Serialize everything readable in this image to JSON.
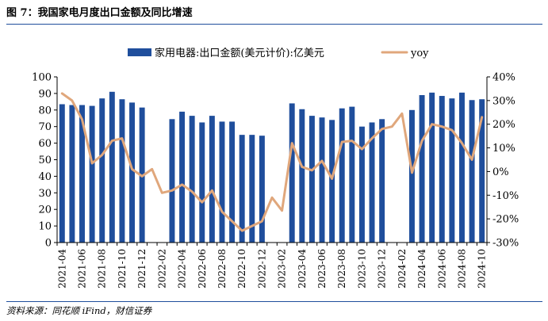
{
  "figure": {
    "title": "图 7：我国家电月度出口金额及同比增速",
    "source": "资料来源：同花顺 iFind，财信证券"
  },
  "colors": {
    "bar": "#1f4e9c",
    "line": "#e0a77c",
    "rule": "#1f4e9c",
    "axis": "#000000"
  },
  "chart_data": {
    "type": "bar",
    "categories": [
      "2021-04",
      "2021-05",
      "2021-06",
      "2021-07",
      "2021-08",
      "2021-09",
      "2021-10",
      "2021-11",
      "2021-12",
      "2022-01",
      "2022-02",
      "2022-03",
      "2022-04",
      "2022-05",
      "2022-06",
      "2022-07",
      "2022-08",
      "2022-09",
      "2022-10",
      "2022-11",
      "2022-12",
      "2023-01",
      "2023-02",
      "2023-03",
      "2023-04",
      "2023-05",
      "2023-06",
      "2023-07",
      "2023-08",
      "2023-09",
      "2023-10",
      "2023-11",
      "2023-12",
      "2024-01",
      "2024-02",
      "2024-03",
      "2024-04",
      "2024-05",
      "2024-06",
      "2024-07",
      "2024-08",
      "2024-09",
      "2024-10"
    ],
    "x_tick_labels": [
      "2021-04",
      "2021-06",
      "2021-08",
      "2021-10",
      "2021-12",
      "2022-02",
      "2022-04",
      "2022-06",
      "2022-08",
      "2022-10",
      "2022-12",
      "2023-02",
      "2023-04",
      "2023-06",
      "2023-08",
      "2023-10",
      "2023-12",
      "2024-02",
      "2024-04",
      "2024-06",
      "2024-08",
      "2024-10"
    ],
    "series": [
      {
        "name": "家用电器:出口金额(美元计价):亿美元",
        "type": "bar",
        "axis": "left",
        "values": [
          83.5,
          83,
          83,
          82.5,
          87,
          91,
          86.5,
          84.5,
          81.5,
          null,
          null,
          74.5,
          79,
          76.5,
          72.5,
          76.5,
          73,
          73,
          65,
          65,
          64.5,
          null,
          null,
          84,
          80.5,
          76.5,
          75.5,
          74,
          81,
          82,
          70,
          72.5,
          74.5,
          null,
          null,
          80,
          89,
          90.5,
          88.5,
          87,
          90.5,
          86,
          86.5
        ]
      },
      {
        "name": "yoy",
        "type": "line",
        "axis": "right",
        "values": [
          33,
          30,
          22,
          3.5,
          7,
          13,
          14,
          1,
          -2,
          1,
          -9,
          -8,
          -5.5,
          -8.5,
          -13,
          -8,
          -17,
          -21,
          -25,
          -23,
          -21,
          -11,
          -16.5,
          12,
          2,
          0.5,
          4.5,
          -3,
          12.5,
          13,
          9.5,
          14,
          18,
          19,
          24.5,
          -0.5,
          13,
          20,
          19,
          17.5,
          12,
          5,
          23
        ]
      }
    ],
    "y_left": {
      "min": 0,
      "max": 100,
      "ticks": [
        "0",
        "10",
        "20",
        "30",
        "40",
        "50",
        "60",
        "70",
        "80",
        "90",
        "100"
      ]
    },
    "y_right": {
      "min": -30,
      "max": 40,
      "ticks": [
        "-30%",
        "-20%",
        "-10%",
        "0%",
        "10%",
        "20%",
        "30%",
        "40%"
      ]
    },
    "legend_position": "top",
    "grid": false
  }
}
